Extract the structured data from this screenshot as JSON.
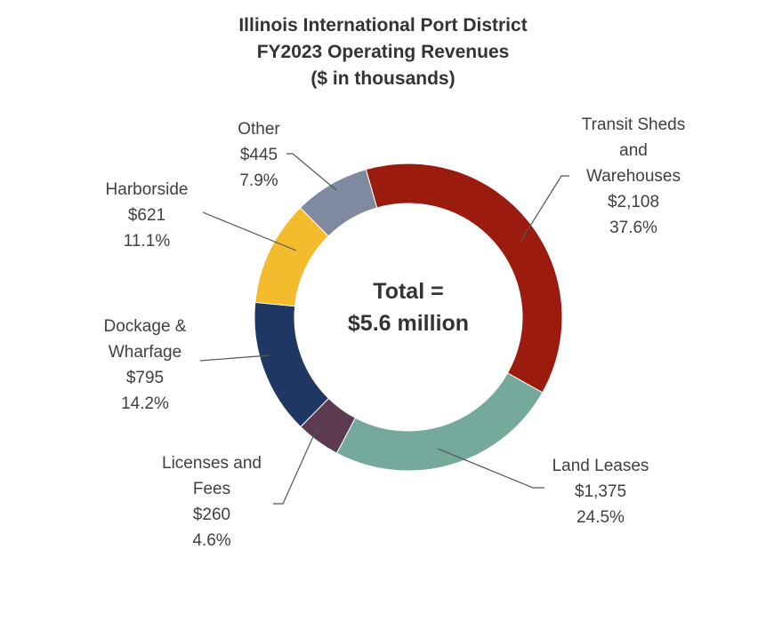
{
  "chart_data": {
    "type": "pie",
    "variant": "donut",
    "title": [
      "Illinois International Port District",
      "FY2023 Operating Revenues",
      "($ in thousands)"
    ],
    "center_text": [
      "Total =",
      "$5.6 million"
    ],
    "slices": [
      {
        "name": "Transit Sheds and Warehouses",
        "label_lines": [
          "Transit Sheds",
          "and",
          "Warehouses"
        ],
        "value": 2108,
        "value_label": "$2,108",
        "percent": 37.6,
        "percent_label": "37.6%",
        "color": "#9B1B0E"
      },
      {
        "name": "Land Leases",
        "label_lines": [
          "Land Leases"
        ],
        "value": 1375,
        "value_label": "$1,375",
        "percent": 24.5,
        "percent_label": "24.5%",
        "color": "#74A99C"
      },
      {
        "name": "Licenses and Fees",
        "label_lines": [
          "Licenses and",
          "Fees"
        ],
        "value": 260,
        "value_label": "$260",
        "percent": 4.6,
        "percent_label": "4.6%",
        "color": "#5B3A52"
      },
      {
        "name": "Dockage & Wharfage",
        "label_lines": [
          "Dockage &",
          "Wharfage"
        ],
        "value": 795,
        "value_label": "$795",
        "percent": 14.2,
        "percent_label": "14.2%",
        "color": "#1F3763"
      },
      {
        "name": "Harborside",
        "label_lines": [
          "Harborside"
        ],
        "value": 621,
        "value_label": "$621",
        "percent": 11.1,
        "percent_label": "11.1%",
        "color": "#F4BC2C"
      },
      {
        "name": "Other",
        "label_lines": [
          "Other"
        ],
        "value": 445,
        "value_label": "$445",
        "percent": 7.9,
        "percent_label": "7.9%",
        "color": "#7F8AA0"
      }
    ],
    "legend": "none"
  }
}
